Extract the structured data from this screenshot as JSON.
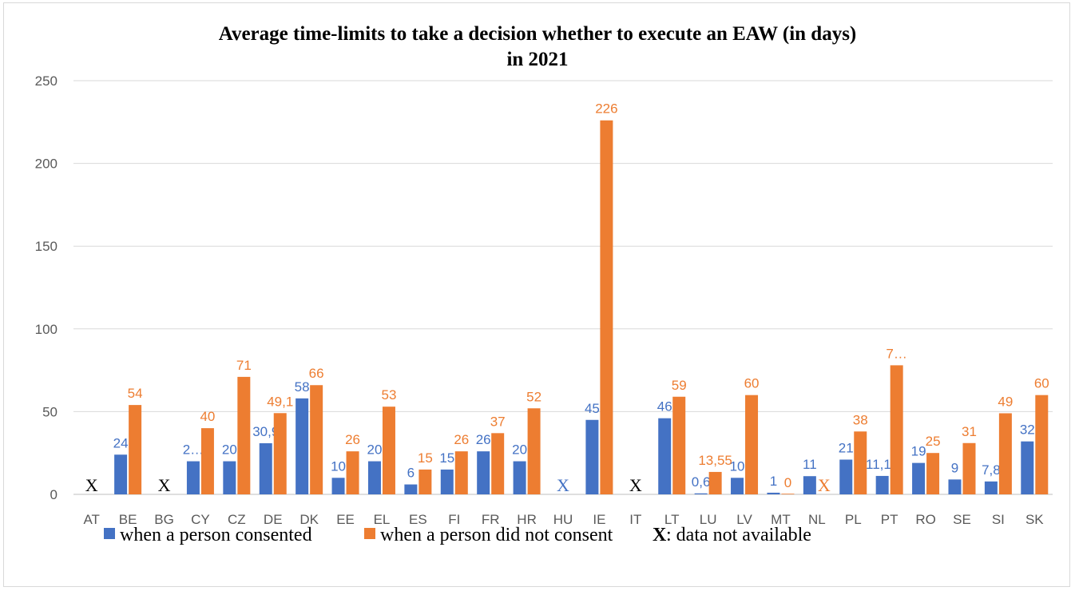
{
  "chart_data": {
    "type": "bar",
    "title": "Average time-limits to take a decision whether to execute an EAW (in days)",
    "subtitle": "in 2021",
    "xlabel": "",
    "ylabel": "",
    "ylim": [
      0,
      250
    ],
    "yticks": [
      "0",
      "50",
      "100",
      "150",
      "200",
      "250"
    ],
    "grid": true,
    "legend_position": "bottom",
    "categories": [
      "AT",
      "BE",
      "BG",
      "CY",
      "CZ",
      "DE",
      "DK",
      "EE",
      "EL",
      "ES",
      "FI",
      "FR",
      "HR",
      "HU",
      "IE",
      "IT",
      "LT",
      "LU",
      "LV",
      "MT",
      "NL",
      "PL",
      "PT",
      "RO",
      "SE",
      "SI",
      "SK"
    ],
    "series": [
      {
        "name": "when a person consented",
        "color": "#4472c4",
        "values": [
          null,
          24,
          null,
          20,
          20,
          30.9,
          58,
          10,
          20,
          6,
          15,
          26,
          20,
          null,
          45,
          null,
          46,
          0.6,
          10,
          1,
          11,
          21,
          11.14,
          19,
          9,
          7.8,
          32
        ],
        "labels": [
          "X",
          "24",
          "X",
          "2…",
          "20",
          "30,9",
          "58",
          "10",
          "20",
          "6",
          "15",
          "26",
          "20",
          "X",
          "45",
          "X",
          "46",
          "0,6",
          "10",
          "1",
          "11",
          "21",
          "11,14",
          "19",
          "9",
          "7,8",
          "32"
        ]
      },
      {
        "name": "when a person did not consent",
        "color": "#ed7d31",
        "values": [
          null,
          54,
          null,
          40,
          71,
          49.1,
          66,
          26,
          53,
          15,
          26,
          37,
          52,
          null,
          226,
          null,
          59,
          13.55,
          60,
          0,
          null,
          38,
          78,
          25,
          31,
          49,
          60
        ],
        "labels": [
          "",
          "54",
          "",
          "40",
          "71",
          "49,1",
          "66",
          "26",
          "53",
          "15",
          "26",
          "37",
          "52",
          "",
          "226",
          "",
          "59",
          "13,55",
          "60",
          "0",
          "X",
          "38",
          "7…",
          "25",
          "31",
          "49",
          "60"
        ]
      }
    ],
    "legend_note": {
      "marker": "X",
      "text": ": data not available"
    }
  }
}
